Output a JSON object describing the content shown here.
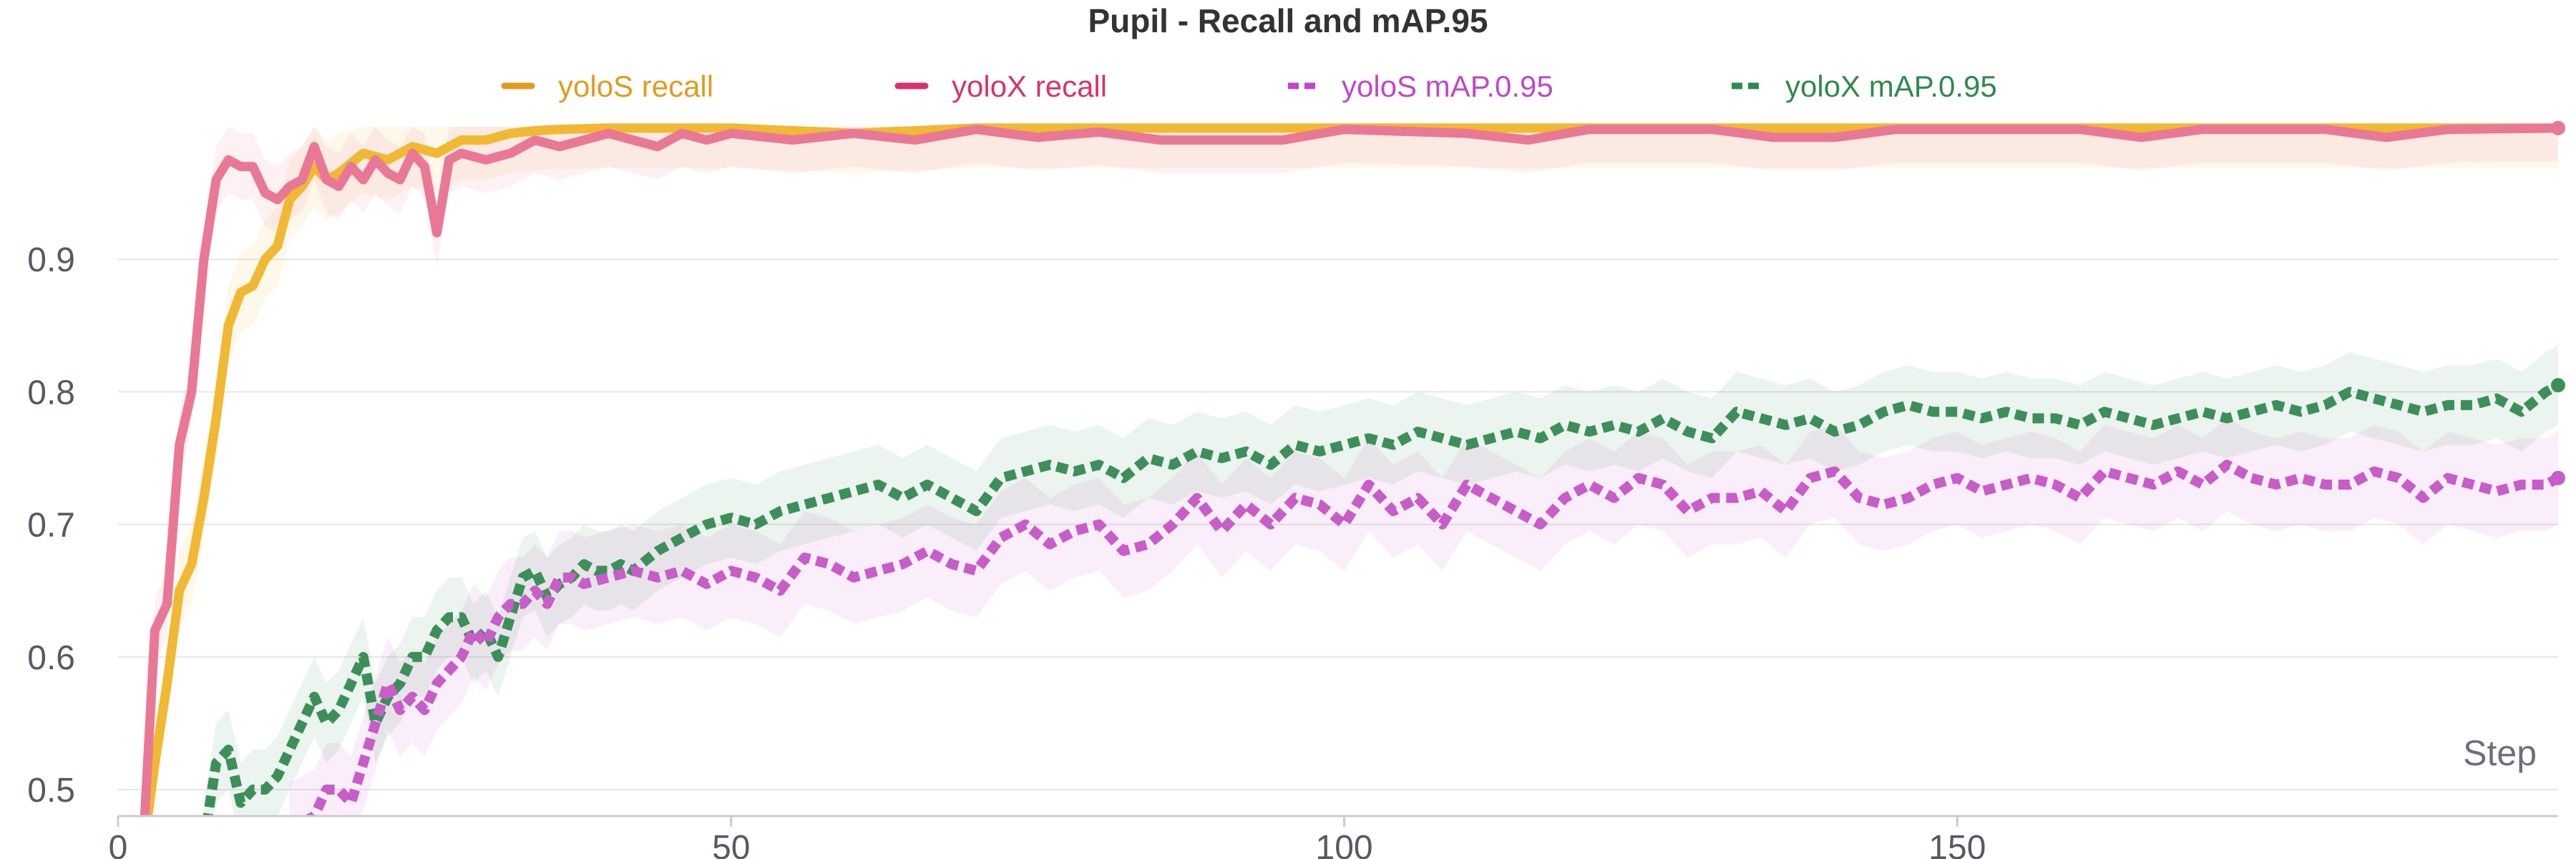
{
  "chart_data": {
    "type": "line",
    "title": "Pupil - Recall and mAP.95",
    "xlabel": "Step",
    "ylabel": "",
    "xlim": [
      0,
      199
    ],
    "ylim": [
      0.48,
      1.02
    ],
    "x_ticks": [
      0,
      50,
      100,
      150
    ],
    "x_tick_labels": [
      "0",
      "50",
      "100",
      "150"
    ],
    "y_ticks": [
      0.5,
      0.6,
      0.7,
      0.8,
      0.9
    ],
    "y_tick_labels": [
      "0.5",
      "0.6",
      "0.7",
      "0.8",
      "0.9"
    ],
    "grid": true,
    "legend_position": "top",
    "series": [
      {
        "name": "yoloS recall",
        "color": "#f0b833",
        "legend_color": "#e39a1e",
        "dash": "solid",
        "band": 0.03,
        "points": [
          [
            2,
            0.45
          ],
          [
            3,
            0.52
          ],
          [
            4,
            0.58
          ],
          [
            5,
            0.65
          ],
          [
            6,
            0.67
          ],
          [
            7,
            0.72
          ],
          [
            8,
            0.78
          ],
          [
            9,
            0.85
          ],
          [
            10,
            0.875
          ],
          [
            11,
            0.88
          ],
          [
            12,
            0.9
          ],
          [
            13,
            0.91
          ],
          [
            14,
            0.945
          ],
          [
            15,
            0.955
          ],
          [
            16,
            0.97
          ],
          [
            17,
            0.96
          ],
          [
            18,
            0.965
          ],
          [
            20,
            0.98
          ],
          [
            22,
            0.975
          ],
          [
            24,
            0.985
          ],
          [
            26,
            0.98
          ],
          [
            28,
            0.99
          ],
          [
            30,
            0.99
          ],
          [
            32,
            0.995
          ],
          [
            34,
            0.997
          ],
          [
            36,
            0.998
          ],
          [
            40,
            0.999
          ],
          [
            50,
            0.999
          ],
          [
            60,
            0.995
          ],
          [
            70,
            0.999
          ],
          [
            80,
            0.999
          ],
          [
            90,
            0.999
          ],
          [
            100,
            0.999
          ],
          [
            150,
            0.999
          ],
          [
            199,
            0.999
          ]
        ]
      },
      {
        "name": "yoloX recall",
        "color": "#e97896",
        "legend_color": "#d8336b",
        "dash": "solid",
        "band": 0.025,
        "points": [
          [
            2,
            0.45
          ],
          [
            3,
            0.62
          ],
          [
            4,
            0.64
          ],
          [
            5,
            0.76
          ],
          [
            6,
            0.8
          ],
          [
            7,
            0.9
          ],
          [
            8,
            0.96
          ],
          [
            9,
            0.975
          ],
          [
            10,
            0.97
          ],
          [
            11,
            0.97
          ],
          [
            12,
            0.95
          ],
          [
            13,
            0.945
          ],
          [
            14,
            0.955
          ],
          [
            15,
            0.96
          ],
          [
            16,
            0.985
          ],
          [
            17,
            0.96
          ],
          [
            18,
            0.955
          ],
          [
            19,
            0.97
          ],
          [
            20,
            0.96
          ],
          [
            21,
            0.975
          ],
          [
            22,
            0.965
          ],
          [
            23,
            0.96
          ],
          [
            24,
            0.98
          ],
          [
            25,
            0.97
          ],
          [
            26,
            0.92
          ],
          [
            27,
            0.975
          ],
          [
            28,
            0.98
          ],
          [
            30,
            0.975
          ],
          [
            32,
            0.98
          ],
          [
            34,
            0.99
          ],
          [
            36,
            0.985
          ],
          [
            38,
            0.99
          ],
          [
            40,
            0.995
          ],
          [
            42,
            0.99
          ],
          [
            44,
            0.985
          ],
          [
            46,
            0.995
          ],
          [
            48,
            0.99
          ],
          [
            50,
            0.995
          ],
          [
            55,
            0.99
          ],
          [
            60,
            0.995
          ],
          [
            65,
            0.99
          ],
          [
            70,
            0.998
          ],
          [
            75,
            0.992
          ],
          [
            80,
            0.996
          ],
          [
            85,
            0.99
          ],
          [
            90,
            0.99
          ],
          [
            95,
            0.99
          ],
          [
            100,
            0.998
          ],
          [
            110,
            0.995
          ],
          [
            115,
            0.99
          ],
          [
            120,
            0.998
          ],
          [
            130,
            0.998
          ],
          [
            135,
            0.992
          ],
          [
            140,
            0.992
          ],
          [
            145,
            0.998
          ],
          [
            160,
            0.998
          ],
          [
            165,
            0.992
          ],
          [
            170,
            0.998
          ],
          [
            180,
            0.998
          ],
          [
            185,
            0.992
          ],
          [
            190,
            0.998
          ],
          [
            199,
            0.999
          ]
        ]
      },
      {
        "name": "yoloS mAP.0.95",
        "color": "#c85cc8",
        "legend_color": "#c048c8",
        "dash": "dashed",
        "band": 0.035,
        "points": [
          [
            14,
            0.47
          ],
          [
            16,
            0.48
          ],
          [
            17,
            0.5
          ],
          [
            18,
            0.5
          ],
          [
            19,
            0.49
          ],
          [
            20,
            0.52
          ],
          [
            21,
            0.55
          ],
          [
            22,
            0.58
          ],
          [
            23,
            0.56
          ],
          [
            24,
            0.57
          ],
          [
            25,
            0.56
          ],
          [
            26,
            0.58
          ],
          [
            27,
            0.59
          ],
          [
            28,
            0.6
          ],
          [
            29,
            0.62
          ],
          [
            30,
            0.61
          ],
          [
            31,
            0.63
          ],
          [
            32,
            0.64
          ],
          [
            33,
            0.64
          ],
          [
            34,
            0.65
          ],
          [
            35,
            0.64
          ],
          [
            36,
            0.66
          ],
          [
            37,
            0.66
          ],
          [
            38,
            0.655
          ],
          [
            40,
            0.66
          ],
          [
            42,
            0.665
          ],
          [
            44,
            0.66
          ],
          [
            46,
            0.665
          ],
          [
            48,
            0.655
          ],
          [
            50,
            0.665
          ],
          [
            52,
            0.66
          ],
          [
            54,
            0.65
          ],
          [
            56,
            0.675
          ],
          [
            58,
            0.67
          ],
          [
            60,
            0.66
          ],
          [
            62,
            0.665
          ],
          [
            64,
            0.67
          ],
          [
            66,
            0.68
          ],
          [
            68,
            0.67
          ],
          [
            70,
            0.665
          ],
          [
            72,
            0.69
          ],
          [
            74,
            0.7
          ],
          [
            76,
            0.685
          ],
          [
            78,
            0.695
          ],
          [
            80,
            0.7
          ],
          [
            82,
            0.68
          ],
          [
            84,
            0.685
          ],
          [
            86,
            0.7
          ],
          [
            88,
            0.72
          ],
          [
            90,
            0.695
          ],
          [
            92,
            0.715
          ],
          [
            94,
            0.7
          ],
          [
            96,
            0.72
          ],
          [
            98,
            0.715
          ],
          [
            100,
            0.7
          ],
          [
            102,
            0.73
          ],
          [
            104,
            0.71
          ],
          [
            106,
            0.72
          ],
          [
            108,
            0.7
          ],
          [
            110,
            0.73
          ],
          [
            112,
            0.72
          ],
          [
            114,
            0.71
          ],
          [
            116,
            0.7
          ],
          [
            118,
            0.72
          ],
          [
            120,
            0.73
          ],
          [
            122,
            0.72
          ],
          [
            124,
            0.735
          ],
          [
            126,
            0.73
          ],
          [
            128,
            0.71
          ],
          [
            130,
            0.72
          ],
          [
            132,
            0.72
          ],
          [
            134,
            0.725
          ],
          [
            136,
            0.71
          ],
          [
            138,
            0.735
          ],
          [
            140,
            0.74
          ],
          [
            142,
            0.72
          ],
          [
            144,
            0.715
          ],
          [
            146,
            0.72
          ],
          [
            148,
            0.73
          ],
          [
            150,
            0.735
          ],
          [
            152,
            0.725
          ],
          [
            154,
            0.73
          ],
          [
            156,
            0.735
          ],
          [
            158,
            0.73
          ],
          [
            160,
            0.72
          ],
          [
            162,
            0.74
          ],
          [
            164,
            0.735
          ],
          [
            166,
            0.73
          ],
          [
            168,
            0.74
          ],
          [
            170,
            0.73
          ],
          [
            172,
            0.745
          ],
          [
            174,
            0.735
          ],
          [
            176,
            0.73
          ],
          [
            178,
            0.735
          ],
          [
            180,
            0.73
          ],
          [
            182,
            0.73
          ],
          [
            184,
            0.74
          ],
          [
            186,
            0.735
          ],
          [
            188,
            0.72
          ],
          [
            190,
            0.735
          ],
          [
            192,
            0.73
          ],
          [
            194,
            0.725
          ],
          [
            196,
            0.73
          ],
          [
            198,
            0.73
          ],
          [
            199,
            0.735
          ]
        ]
      },
      {
        "name": "yoloX mAP.0.95",
        "color": "#3d8f5a",
        "legend_color": "#2e8a4c",
        "dash": "dashed",
        "band": 0.03,
        "points": [
          [
            7,
            0.46
          ],
          [
            8,
            0.52
          ],
          [
            9,
            0.53
          ],
          [
            10,
            0.49
          ],
          [
            11,
            0.5
          ],
          [
            12,
            0.5
          ],
          [
            13,
            0.51
          ],
          [
            14,
            0.53
          ],
          [
            15,
            0.55
          ],
          [
            16,
            0.57
          ],
          [
            17,
            0.55
          ],
          [
            18,
            0.56
          ],
          [
            19,
            0.58
          ],
          [
            20,
            0.6
          ],
          [
            21,
            0.55
          ],
          [
            22,
            0.57
          ],
          [
            23,
            0.58
          ],
          [
            24,
            0.6
          ],
          [
            25,
            0.6
          ],
          [
            26,
            0.62
          ],
          [
            27,
            0.63
          ],
          [
            28,
            0.63
          ],
          [
            29,
            0.61
          ],
          [
            30,
            0.62
          ],
          [
            31,
            0.6
          ],
          [
            32,
            0.63
          ],
          [
            33,
            0.66
          ],
          [
            34,
            0.665
          ],
          [
            35,
            0.645
          ],
          [
            36,
            0.655
          ],
          [
            37,
            0.66
          ],
          [
            38,
            0.67
          ],
          [
            39,
            0.665
          ],
          [
            40,
            0.665
          ],
          [
            41,
            0.67
          ],
          [
            42,
            0.665
          ],
          [
            44,
            0.68
          ],
          [
            46,
            0.69
          ],
          [
            48,
            0.7
          ],
          [
            50,
            0.705
          ],
          [
            52,
            0.7
          ],
          [
            54,
            0.71
          ],
          [
            56,
            0.715
          ],
          [
            58,
            0.72
          ],
          [
            60,
            0.725
          ],
          [
            62,
            0.73
          ],
          [
            64,
            0.72
          ],
          [
            66,
            0.73
          ],
          [
            68,
            0.72
          ],
          [
            70,
            0.71
          ],
          [
            72,
            0.735
          ],
          [
            74,
            0.74
          ],
          [
            76,
            0.745
          ],
          [
            78,
            0.74
          ],
          [
            80,
            0.745
          ],
          [
            82,
            0.735
          ],
          [
            84,
            0.75
          ],
          [
            86,
            0.745
          ],
          [
            88,
            0.755
          ],
          [
            90,
            0.75
          ],
          [
            92,
            0.755
          ],
          [
            94,
            0.745
          ],
          [
            96,
            0.76
          ],
          [
            98,
            0.755
          ],
          [
            100,
            0.76
          ],
          [
            102,
            0.765
          ],
          [
            104,
            0.76
          ],
          [
            106,
            0.77
          ],
          [
            108,
            0.765
          ],
          [
            110,
            0.76
          ],
          [
            112,
            0.765
          ],
          [
            114,
            0.77
          ],
          [
            116,
            0.765
          ],
          [
            118,
            0.775
          ],
          [
            120,
            0.77
          ],
          [
            122,
            0.775
          ],
          [
            124,
            0.77
          ],
          [
            126,
            0.78
          ],
          [
            128,
            0.77
          ],
          [
            130,
            0.765
          ],
          [
            132,
            0.785
          ],
          [
            134,
            0.78
          ],
          [
            136,
            0.775
          ],
          [
            138,
            0.78
          ],
          [
            140,
            0.77
          ],
          [
            142,
            0.775
          ],
          [
            144,
            0.785
          ],
          [
            146,
            0.79
          ],
          [
            148,
            0.785
          ],
          [
            150,
            0.785
          ],
          [
            152,
            0.78
          ],
          [
            154,
            0.785
          ],
          [
            156,
            0.78
          ],
          [
            158,
            0.78
          ],
          [
            160,
            0.775
          ],
          [
            162,
            0.785
          ],
          [
            164,
            0.78
          ],
          [
            166,
            0.775
          ],
          [
            168,
            0.78
          ],
          [
            170,
            0.785
          ],
          [
            172,
            0.78
          ],
          [
            174,
            0.785
          ],
          [
            176,
            0.79
          ],
          [
            178,
            0.785
          ],
          [
            180,
            0.79
          ],
          [
            182,
            0.8
          ],
          [
            184,
            0.795
          ],
          [
            186,
            0.79
          ],
          [
            188,
            0.785
          ],
          [
            190,
            0.79
          ],
          [
            192,
            0.79
          ],
          [
            194,
            0.795
          ],
          [
            196,
            0.785
          ],
          [
            198,
            0.8
          ],
          [
            199,
            0.805
          ]
        ]
      }
    ]
  }
}
